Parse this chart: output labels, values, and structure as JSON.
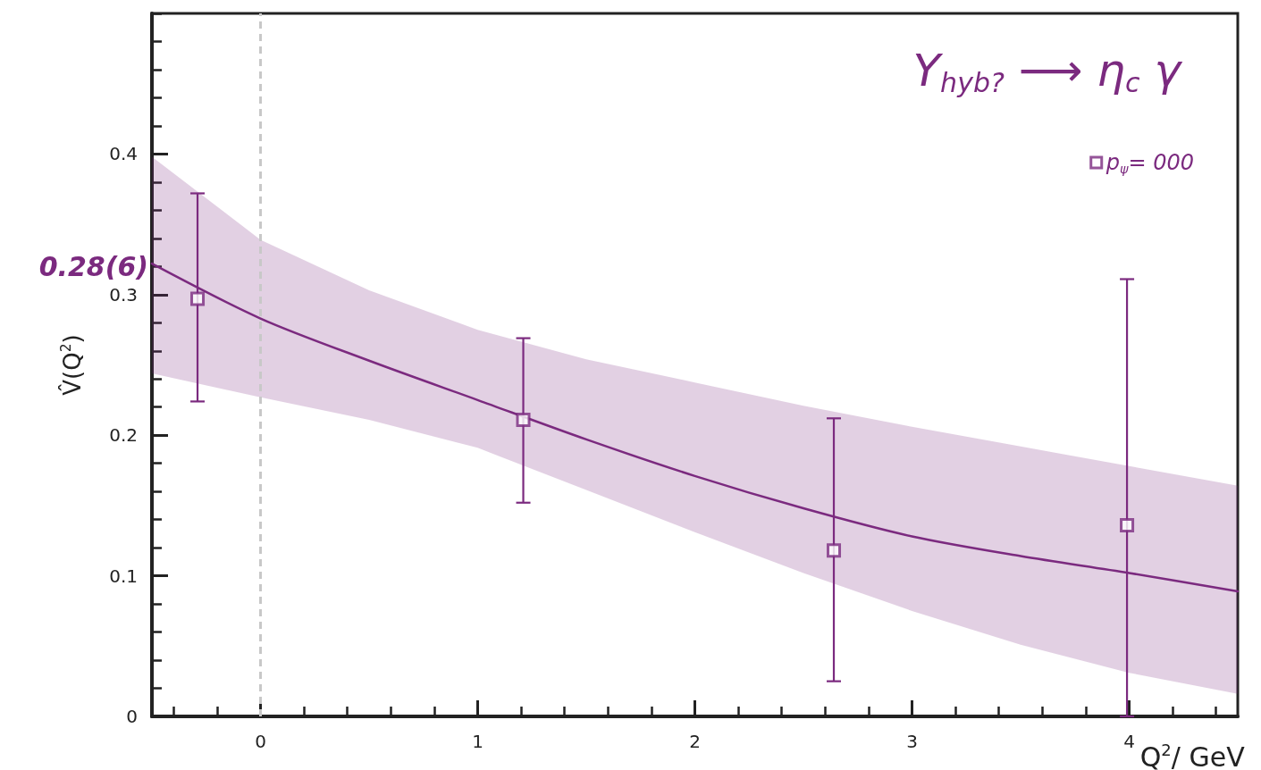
{
  "chart_data": {
    "type": "scatter",
    "title": "Y$_{hyb?}$ ⟶ η$_{c}$ γ",
    "xlabel": "Q$^{2}$/ GeV",
    "ylabel": "V̂(Q$^{2}$)",
    "xlim": [
      -0.5,
      4.5
    ],
    "xticks": [
      0,
      1,
      2,
      3,
      4
    ],
    "ylim": [
      0,
      0.5
    ],
    "yticks": [
      0,
      0.1,
      0.2,
      0.3,
      0.4
    ],
    "grid": false,
    "legend": "top right",
    "series": [
      {
        "name": "p$_{ψ}$= 000",
        "marker": "square",
        "color": "#7b2a7f",
        "x": [
          -0.29,
          1.21,
          2.64,
          3.99
        ],
        "values": [
          0.297,
          0.211,
          0.118,
          0.136
        ],
        "errors": [
          [
            0.224,
            0.372
          ],
          [
            0.152,
            0.269
          ],
          [
            0.025,
            0.212
          ],
          [
            0,
            0.311
          ]
        ]
      },
      {
        "type": "line",
        "color": "#7b2a7f",
        "line_style": "solid",
        "x": [
          -0.5,
          0,
          0.5,
          1,
          1.5,
          2,
          2.5,
          3,
          3.5,
          4,
          4.5
        ],
        "values": [
          0.322,
          0.283,
          0.253,
          0.225,
          0.197,
          0.171,
          0.148,
          0.128,
          0.114,
          0.102,
          0.089
        ],
        "lower": [
          0.244,
          0.227,
          0.211,
          0.191,
          0.161,
          0.131,
          0.102,
          0.075,
          0.051,
          0.031,
          0.016
        ],
        "upper": [
          0.398,
          0.339,
          0.303,
          0.275,
          0.254,
          0.2375,
          0.221,
          0.206,
          0.192,
          0.178,
          0.164
        ]
      }
    ],
    "ref_lines": [
      {
        "axis": "x",
        "value": 0,
        "color": "#c8c8c8",
        "line_style": "dashed"
      }
    ],
    "annotations": [
      {
        "text": "0.28(6)",
        "x": -0.5,
        "y": 0.32
      }
    ]
  }
}
